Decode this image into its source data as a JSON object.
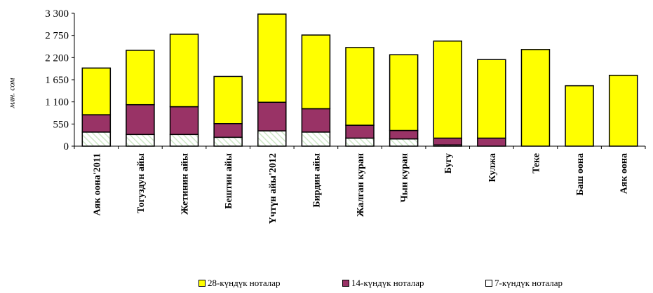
{
  "chart_data": {
    "type": "bar",
    "stacked": true,
    "title": "",
    "xlabel": "",
    "ylabel": "млн. сом",
    "ylim": [
      0,
      3300
    ],
    "yticks": [
      0,
      550,
      1100,
      1650,
      2200,
      2750,
      3300
    ],
    "ytick_labels": [
      "0",
      "550",
      "1 100",
      "1 650",
      "2 200",
      "2 750",
      "3 300"
    ],
    "grid": false,
    "legend_position": "bottom",
    "categories": [
      "Аяк оона'2011",
      "Тогуздун айы",
      "Жетинин айы",
      "Бештин айы",
      "Үчтүн айы'2012",
      "Бирдин айы",
      "Жалган куран",
      "Чын куран",
      "Бугу",
      "Кулжа",
      "Теке",
      "Баш оона",
      "Аяк оона"
    ],
    "series": [
      {
        "name": "7-күндүк ноталар",
        "color": "#ffffff",
        "values": [
          350,
          290,
          290,
          220,
          380,
          350,
          200,
          180,
          30,
          0,
          0,
          0,
          0
        ]
      },
      {
        "name": "14-күндүк ноталар",
        "color": "#993366",
        "values": [
          430,
          740,
          690,
          340,
          710,
          580,
          320,
          210,
          170,
          200,
          0,
          0,
          0
        ]
      },
      {
        "name": "28-күндүк ноталар",
        "color": "#ffff00",
        "values": [
          1160,
          1350,
          1800,
          1170,
          2190,
          1830,
          1930,
          1880,
          2410,
          1950,
          2400,
          1500,
          1760
        ]
      }
    ]
  }
}
